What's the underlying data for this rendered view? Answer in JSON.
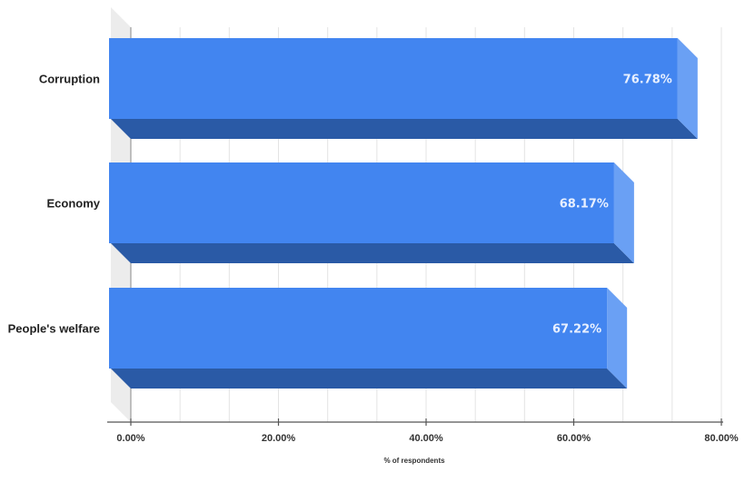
{
  "chart_data": {
    "type": "bar",
    "orientation": "horizontal",
    "style": "3d",
    "title": "",
    "xlabel": "% of respondents",
    "ylabel": "",
    "categories": [
      "Corruption",
      "Economy",
      "People's welfare"
    ],
    "values": [
      76.78,
      68.17,
      67.22
    ],
    "value_labels": [
      "76.78%",
      "68.17%",
      "67.22%"
    ],
    "xlim": [
      0,
      80
    ],
    "x_ticks": [
      0,
      20,
      40,
      60,
      80
    ],
    "x_tick_labels": [
      "0.00%",
      "20.00%",
      "40.00%",
      "60.00%",
      "80.00%"
    ],
    "grid": true,
    "legend": "none"
  },
  "colors": {
    "bar_front": "#4285f0",
    "bar_bottom": "#2a5aa6",
    "bar_side": "#6aa0f4",
    "wall": "#ececec",
    "grid": "#e4e4e4",
    "axis": "#555555"
  }
}
